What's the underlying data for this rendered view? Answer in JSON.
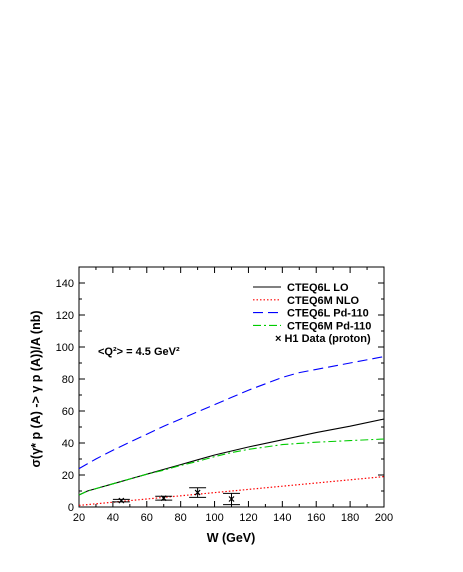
{
  "chart_data": {
    "type": "line",
    "title": "",
    "xlabel": "W (GeV)",
    "ylabel": "σ(γ* p (A) -> γ p (A))/A (nb)",
    "xlim": [
      20,
      200
    ],
    "ylim": [
      0,
      150
    ],
    "xticks": [
      20,
      40,
      60,
      80,
      100,
      120,
      140,
      160,
      180,
      200
    ],
    "yticks": [
      0,
      20,
      40,
      60,
      80,
      100,
      120,
      140
    ],
    "grid": false,
    "legend_position": "top-right",
    "annotation": "<Q²> = 4.5 GeV²",
    "series": [
      {
        "name": "CTEQ6L LO",
        "color": "#000000",
        "style": "solid",
        "x": [
          20,
          25,
          30,
          40,
          50,
          60,
          70,
          80,
          90,
          100,
          110,
          120,
          140,
          160,
          180,
          200
        ],
        "y": [
          7.5,
          10,
          11.5,
          14.5,
          17.5,
          20.5,
          23.5,
          26.5,
          29.5,
          32.5,
          35,
          37.5,
          42,
          46.5,
          50.5,
          55
        ]
      },
      {
        "name": "CTEQ6M NLO",
        "color": "#ff0000",
        "style": "dotted",
        "x": [
          20,
          30,
          40,
          50,
          60,
          70,
          80,
          90,
          100,
          110,
          120,
          140,
          160,
          180,
          200
        ],
        "y": [
          1,
          2,
          3,
          4,
          5,
          6,
          7,
          8,
          9,
          10,
          11,
          13,
          15,
          17,
          19
        ]
      },
      {
        "name": "CTEQ6L Pd-110",
        "color": "#0000ff",
        "style": "dashed",
        "x": [
          20,
          30,
          40,
          50,
          60,
          70,
          80,
          90,
          100,
          110,
          120,
          130,
          140,
          150,
          160,
          180,
          200
        ],
        "y": [
          24,
          30,
          35.5,
          40.5,
          45.5,
          50.5,
          55,
          59.5,
          64,
          68.5,
          73,
          77,
          81,
          84,
          86,
          90,
          94
        ]
      },
      {
        "name": "CTEQ6M Pd-110",
        "color": "#00cc00",
        "style": "dashdot",
        "x": [
          20,
          25,
          30,
          40,
          50,
          60,
          70,
          80,
          90,
          100,
          110,
          120,
          140,
          160,
          180,
          200
        ],
        "y": [
          7.5,
          10,
          11.5,
          14.5,
          17.5,
          20.5,
          23,
          26,
          28.5,
          31.5,
          34,
          36,
          39,
          40.5,
          41.5,
          42.5
        ]
      }
    ],
    "points": {
      "name": "H1 Data (proton)",
      "marker": "×",
      "color": "#000000",
      "data": [
        {
          "x": 45,
          "y": 4,
          "err": 0.8,
          "xerr": 5
        },
        {
          "x": 70,
          "y": 5.5,
          "err": 1.2,
          "xerr": 5
        },
        {
          "x": 90,
          "y": 9,
          "err": 3,
          "xerr": 5
        },
        {
          "x": 110,
          "y": 5,
          "err": 3.5,
          "xerr": 5
        }
      ]
    }
  }
}
